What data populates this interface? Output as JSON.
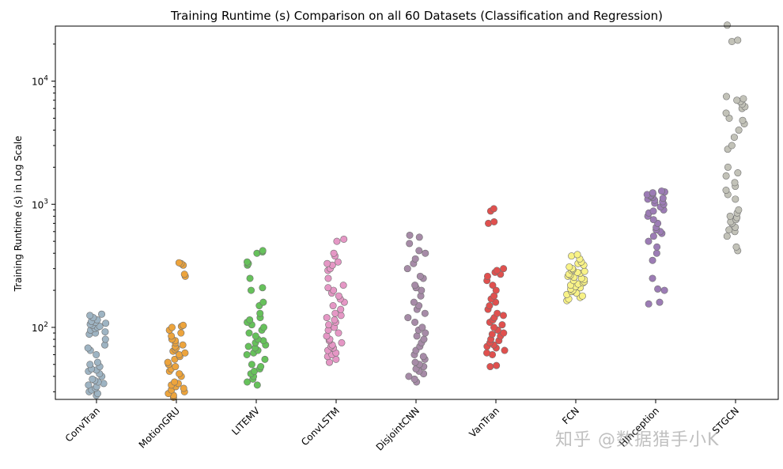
{
  "chart_data": {
    "type": "scatter",
    "title": "Training Runtime (s) Comparison on all 60 Datasets (Classification and Regression)",
    "xlabel": "",
    "ylabel": "Training Runtime (s) in Log Scale",
    "yscale": "log",
    "ylim": [
      26,
      28000
    ],
    "yticks": [
      {
        "value": 100,
        "base": "10",
        "exp": "2"
      },
      {
        "value": 1000,
        "base": "10",
        "exp": "3"
      },
      {
        "value": 10000,
        "base": "10",
        "exp": "4"
      }
    ],
    "categories": [
      "ConvTran",
      "MotionGRU",
      "LITEMV",
      "ConvLSTM",
      "DisjointCNN",
      "VanTran",
      "FCN",
      "HInception",
      "STGCN"
    ],
    "series": [
      {
        "name": "ConvTran",
        "color": "#9eb4c3",
        "values": [
          28,
          29,
          30,
          31,
          32,
          33,
          34,
          35,
          36,
          37,
          38,
          40,
          42,
          44,
          45,
          46,
          48,
          50,
          52,
          60,
          65,
          68,
          72,
          80,
          88,
          90,
          92,
          95,
          98,
          100,
          102,
          104,
          106,
          108,
          110,
          112,
          115,
          120,
          125,
          128
        ]
      },
      {
        "name": "MotionGRU",
        "color": "#eda43c",
        "values": [
          27,
          28,
          29,
          30,
          31,
          32,
          33,
          34,
          35,
          36,
          40,
          42,
          44,
          46,
          48,
          50,
          52,
          55,
          58,
          60,
          62,
          64,
          66,
          68,
          70,
          72,
          75,
          78,
          80,
          85,
          90,
          95,
          100,
          102,
          104,
          260,
          270,
          320,
          330,
          335
        ]
      },
      {
        "name": "LITEMV",
        "color": "#66c15b",
        "values": [
          34,
          36,
          38,
          40,
          42,
          44,
          46,
          48,
          50,
          55,
          60,
          62,
          65,
          68,
          70,
          72,
          75,
          78,
          80,
          85,
          90,
          95,
          100,
          105,
          110,
          115,
          120,
          130,
          150,
          160,
          200,
          210,
          250,
          320,
          330,
          340,
          400,
          410,
          420
        ]
      },
      {
        "name": "ConvLSTM",
        "color": "#e597c5",
        "values": [
          52,
          55,
          58,
          60,
          62,
          65,
          68,
          70,
          72,
          75,
          78,
          80,
          85,
          90,
          95,
          100,
          105,
          110,
          115,
          120,
          125,
          130,
          140,
          150,
          160,
          170,
          180,
          190,
          200,
          210,
          220,
          250,
          290,
          300,
          320,
          330,
          340,
          380,
          400,
          500,
          520
        ]
      },
      {
        "name": "DisjointCNN",
        "color": "#a68ba7",
        "values": [
          36,
          38,
          40,
          42,
          44,
          46,
          48,
          50,
          52,
          55,
          58,
          60,
          65,
          70,
          75,
          80,
          85,
          90,
          95,
          100,
          110,
          120,
          130,
          140,
          150,
          160,
          180,
          200,
          210,
          220,
          250,
          260,
          300,
          330,
          360,
          400,
          420,
          480,
          540,
          560
        ]
      },
      {
        "name": "VanTran",
        "color": "#e0504e",
        "values": [
          48,
          49,
          60,
          62,
          65,
          68,
          70,
          72,
          75,
          78,
          80,
          85,
          88,
          90,
          95,
          100,
          105,
          110,
          115,
          120,
          125,
          130,
          140,
          150,
          160,
          170,
          180,
          200,
          220,
          240,
          260,
          270,
          280,
          290,
          300,
          700,
          720,
          880,
          920
        ]
      },
      {
        "name": "FCN",
        "color": "#f8f287",
        "values": [
          165,
          170,
          175,
          180,
          185,
          190,
          195,
          200,
          205,
          210,
          215,
          220,
          225,
          230,
          235,
          240,
          245,
          250,
          255,
          260,
          265,
          270,
          275,
          280,
          285,
          290,
          295,
          300,
          310,
          320,
          330,
          340,
          360,
          380,
          390
        ]
      },
      {
        "name": "HInception",
        "color": "#9c7cb5",
        "values": [
          155,
          160,
          200,
          205,
          250,
          350,
          400,
          450,
          500,
          550,
          580,
          600,
          620,
          650,
          700,
          750,
          800,
          850,
          880,
          900,
          950,
          1000,
          1020,
          1050,
          1080,
          1100,
          1120,
          1140,
          1160,
          1180,
          1200,
          1220,
          1240,
          1260,
          1280
        ]
      },
      {
        "name": "STGCN",
        "color": "#c2c2b8",
        "values": [
          420,
          450,
          550,
          600,
          620,
          650,
          700,
          720,
          750,
          780,
          800,
          850,
          900,
          1100,
          1200,
          1300,
          1400,
          1500,
          1700,
          1800,
          2000,
          2800,
          3000,
          3500,
          4000,
          4500,
          4800,
          5000,
          5500,
          6000,
          6200,
          6500,
          6800,
          7000,
          7200,
          7500,
          21000,
          21500,
          28500
        ]
      }
    ]
  },
  "watermark": "知乎 @数据猎手小K"
}
